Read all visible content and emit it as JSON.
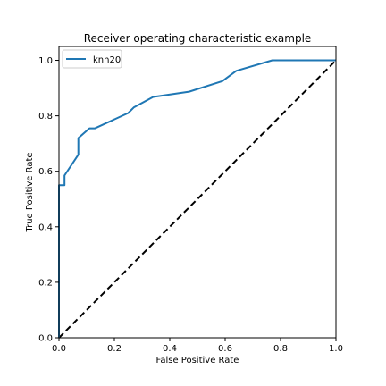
{
  "chart_data": {
    "type": "line",
    "title": "Receiver operating characteristic example",
    "xlabel": "False Positive Rate",
    "ylabel": "True Positive Rate",
    "xlim": [
      0.0,
      1.0
    ],
    "ylim": [
      0.0,
      1.05
    ],
    "xticks": [
      "0.0",
      "0.2",
      "0.4",
      "0.6",
      "0.8",
      "1.0"
    ],
    "yticks": [
      "0.0",
      "0.2",
      "0.4",
      "0.6",
      "0.8",
      "1.0"
    ],
    "grid": false,
    "legend_position": "upper-left",
    "series": [
      {
        "name": "knn20",
        "color": "#1f77b4",
        "style": "solid",
        "x": [
          0.0,
          0.0,
          0.02,
          0.02,
          0.07,
          0.07,
          0.11,
          0.13,
          0.25,
          0.27,
          0.34,
          0.47,
          0.59,
          0.64,
          0.77,
          1.0
        ],
        "y": [
          0.0,
          0.55,
          0.55,
          0.585,
          0.66,
          0.72,
          0.755,
          0.755,
          0.81,
          0.83,
          0.868,
          0.887,
          0.925,
          0.962,
          1.0,
          1.0
        ]
      },
      {
        "color": "#000000",
        "style": "dashed",
        "x": [
          0.0,
          1.0
        ],
        "y": [
          0.0,
          1.0
        ]
      }
    ]
  }
}
